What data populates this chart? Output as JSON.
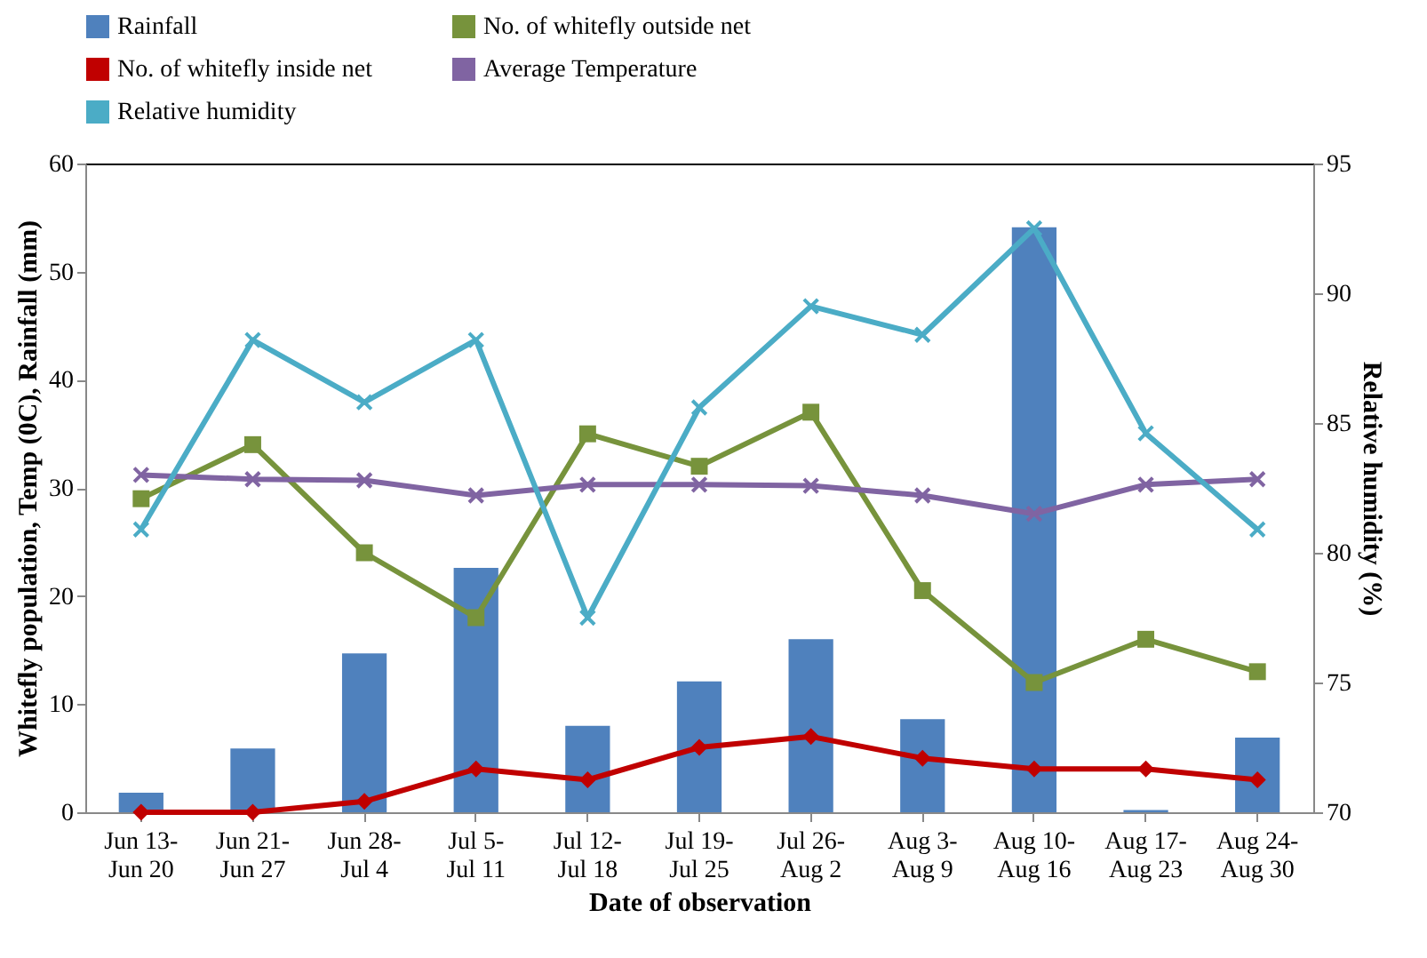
{
  "chart_data": {
    "type": "bar",
    "xlabel": "Date of observation",
    "ylabel": "Whitefly population, Temp (0C), Rainfall (mm)",
    "y2label": "Relative humidity (%)",
    "categories": [
      "Jun 13-\nJun 20",
      "Jun 21-\nJun 27",
      "Jun 28-\nJul 4",
      "Jul 5-\nJul 11",
      "Jul 12-\nJul 18",
      "Jul 19-\nJul 25",
      "Jul 26-\nAug 2",
      "Aug 3-\nAug 9",
      "Aug 10-\nAug 16",
      "Aug 17-\nAug 23",
      "Aug 24-\nAug 30"
    ],
    "series": [
      {
        "name": "Rainfall",
        "color": "#4f81bd",
        "values": [
          1.8,
          5.9,
          14.7,
          22.6,
          8.0,
          12.1,
          16.0,
          8.6,
          54.1,
          0.2,
          6.9
        ]
      },
      {
        "name": "No. of whitefly outside net",
        "type": "line",
        "color": "#77933c",
        "marker": "square",
        "values": [
          29,
          34,
          24,
          18,
          35,
          32,
          37,
          20.5,
          12,
          16,
          13
        ]
      },
      {
        "name": "No. of whitefly inside net",
        "type": "line",
        "color": "#c00000",
        "marker": "diamond",
        "values": [
          0,
          0,
          1,
          4,
          3,
          6,
          7,
          5,
          4,
          4,
          3
        ]
      },
      {
        "name": "Average Temperature",
        "type": "line",
        "color": "#8064a2",
        "marker": "cross",
        "values": [
          31.2,
          30.8,
          30.7,
          29.3,
          30.3,
          30.3,
          30.2,
          29.3,
          27.6,
          30.3,
          30.8
        ]
      },
      {
        "name": "Relative humidity",
        "type": "line",
        "axis": "y2",
        "color": "#4bacc6",
        "marker": "cross",
        "values": [
          80.9,
          88.2,
          85.8,
          88.2,
          77.5,
          85.6,
          89.5,
          88.4,
          92.5,
          84.6,
          80.9
        ]
      }
    ],
    "ylim": [
      0,
      60
    ],
    "yticks": [
      0,
      10,
      20,
      30,
      40,
      50,
      60
    ],
    "y2lim": [
      70,
      95
    ],
    "y2ticks": [
      70,
      75,
      80,
      85,
      90,
      95
    ],
    "grid": false,
    "legend": "top"
  }
}
